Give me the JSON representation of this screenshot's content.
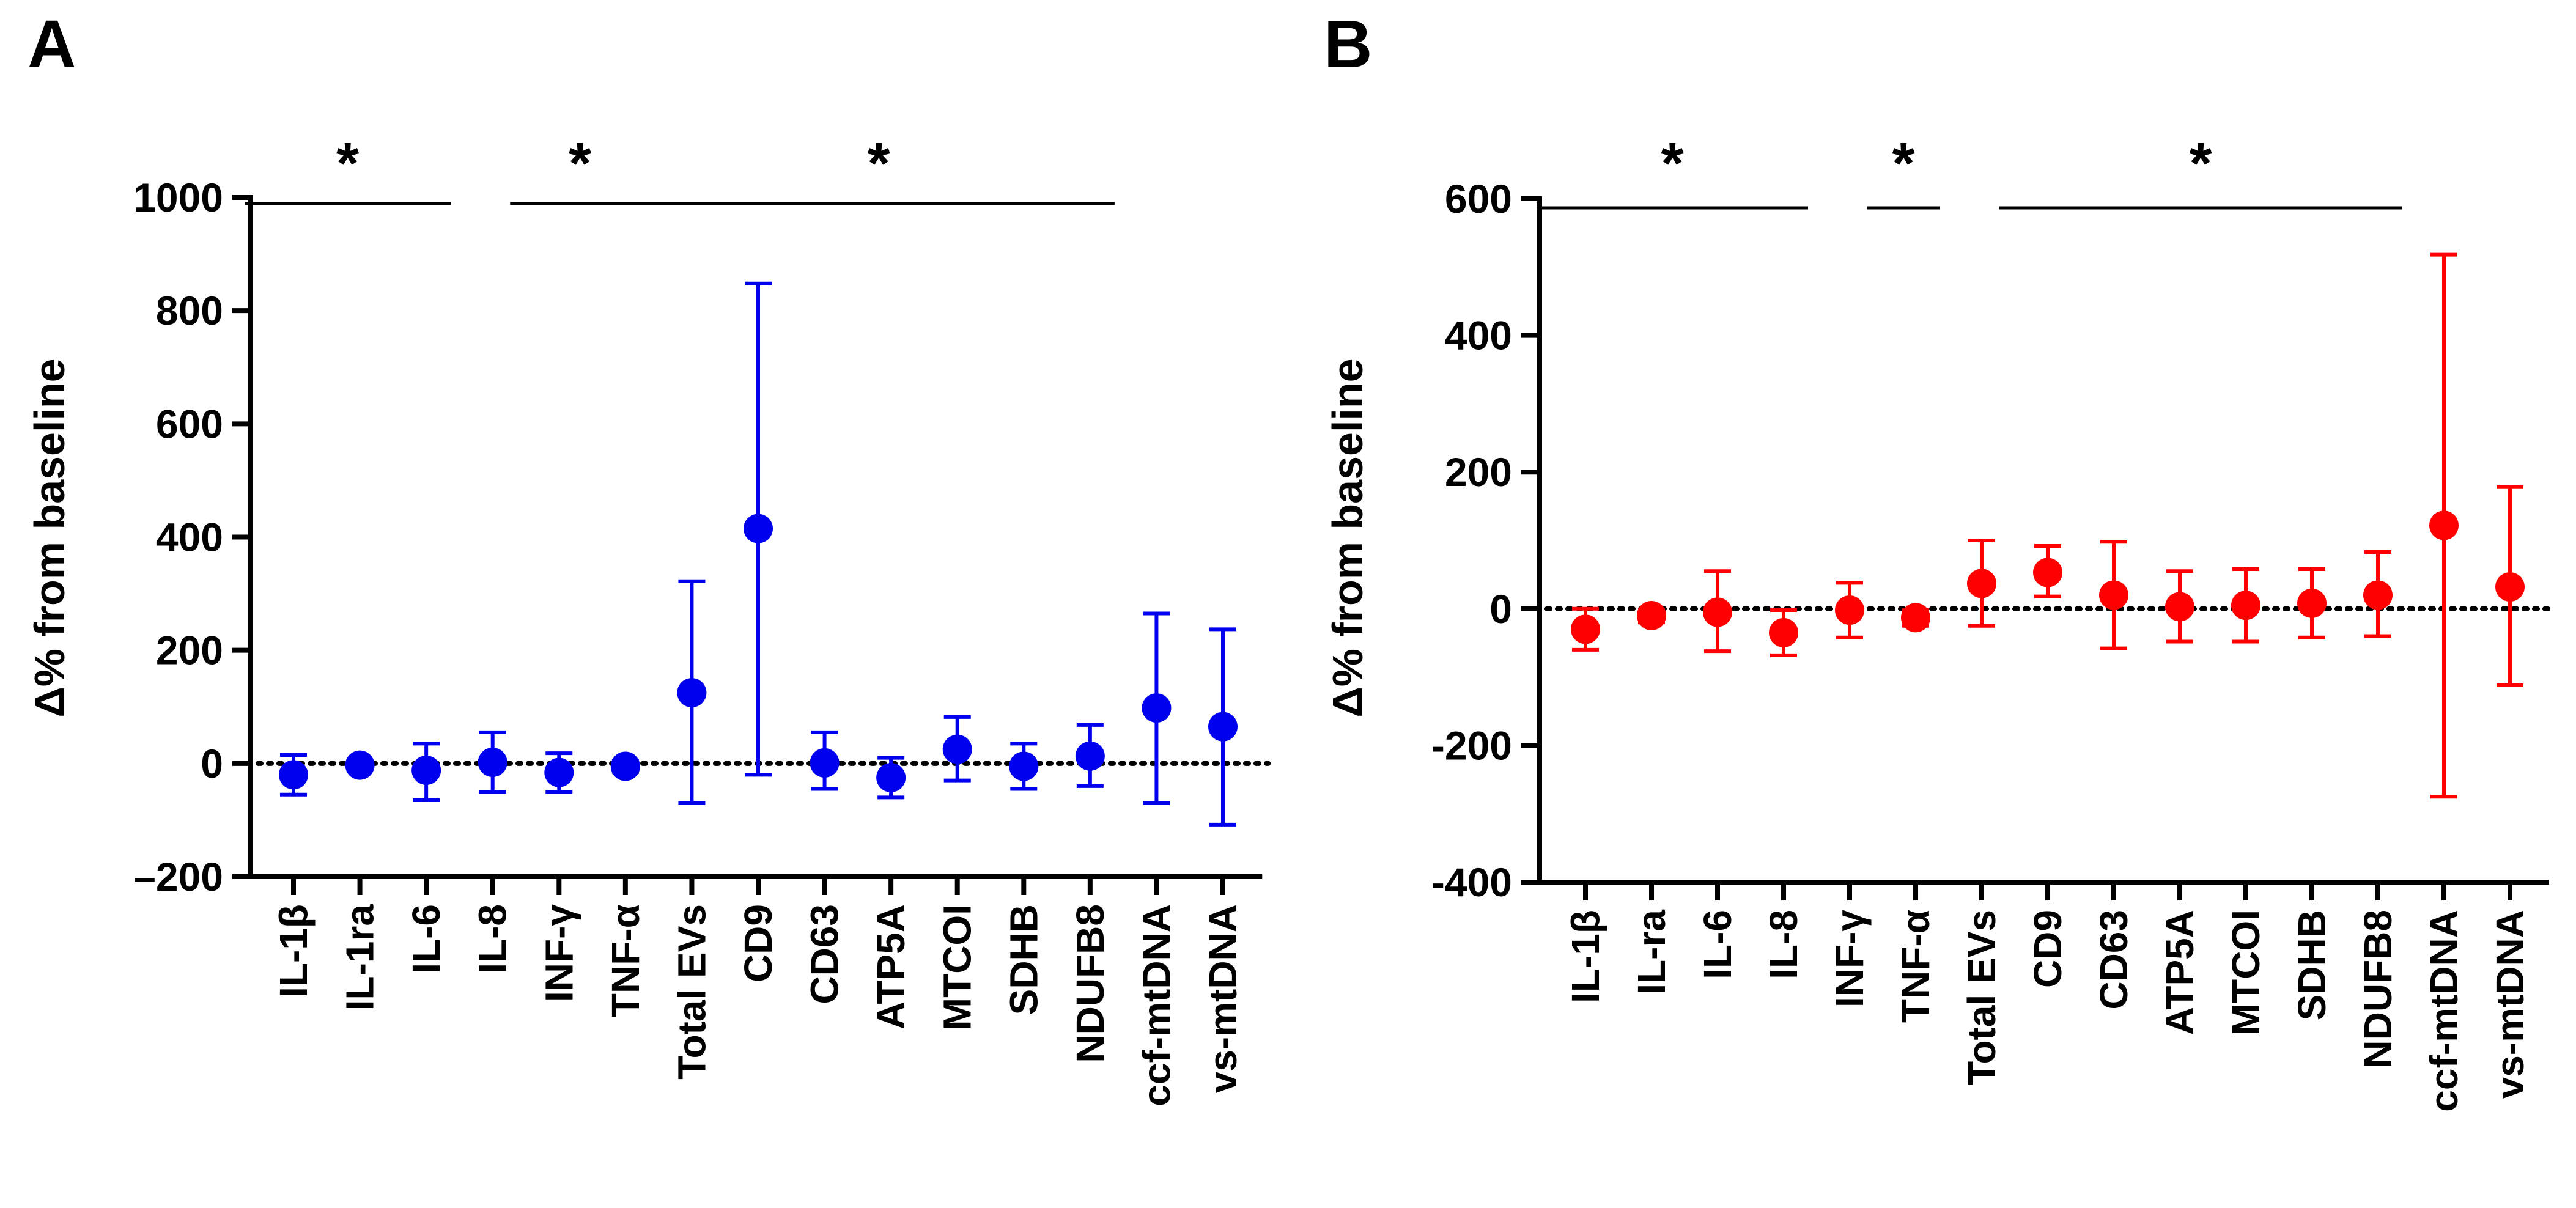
{
  "chart_data": [
    {
      "type": "scatter",
      "panel_label": "A",
      "ylabel": "Δ% from baseline",
      "xlabel": "",
      "ylim": [
        -200,
        1000
      ],
      "yticks": [
        -200,
        0,
        200,
        400,
        600,
        800,
        1000
      ],
      "ytick_labels": [
        "–200",
        "0",
        "200",
        "400",
        "600",
        "800",
        "1000"
      ],
      "reference_line": 0,
      "color": "#0000ee",
      "categories": [
        "IL-1β",
        "IL-1ra",
        "IL-6",
        "IL-8",
        "INF-γ",
        "TNF-α",
        "Total EVs",
        "CD9",
        "CD63",
        "ATP5A",
        "MTCOI",
        "SDHB",
        "NDUFB8",
        "ccf-mtDNA",
        "vs-mtDNA"
      ],
      "values": [
        -20,
        -3,
        -12,
        2,
        -16,
        -5,
        125,
        415,
        1,
        -25,
        25,
        -5,
        13,
        98,
        65
      ],
      "error_low": [
        -55,
        -10,
        -65,
        -50,
        -50,
        -15,
        -70,
        -20,
        -45,
        -60,
        -30,
        -45,
        -40,
        -70,
        -108
      ],
      "error_high": [
        15,
        5,
        35,
        55,
        18,
        5,
        322,
        848,
        55,
        10,
        82,
        35,
        68,
        265,
        237
      ],
      "significance": [
        {
          "from": 0,
          "to": 2,
          "label": "*"
        },
        {
          "from": 4,
          "to": 5,
          "label": "*"
        },
        {
          "from": 6,
          "to": 12,
          "label": "*"
        }
      ]
    },
    {
      "type": "scatter",
      "panel_label": "B",
      "ylabel": "Δ% from baseline",
      "xlabel": "",
      "ylim": [
        -400,
        600
      ],
      "yticks": [
        -400,
        -200,
        0,
        200,
        400,
        600
      ],
      "ytick_labels": [
        "-400",
        "-200",
        "0",
        "200",
        "400",
        "600"
      ],
      "reference_line": 0,
      "color": "#ff0000",
      "categories": [
        "IL-1β",
        "IL-ra",
        "IL-6",
        "IL-8",
        "INF-γ",
        "TNF-α",
        "Total EVs",
        "CD9",
        "CD63",
        "ATP5A",
        "MTCOI",
        "SDHB",
        "NDUFB8",
        "ccf-mtDNA",
        "vs-mtDNA"
      ],
      "values": [
        -30,
        -10,
        -5,
        -35,
        -2,
        -13,
        37,
        53,
        20,
        3,
        5,
        8,
        20,
        122,
        32
      ],
      "error_low": [
        -60,
        -20,
        -62,
        -68,
        -42,
        -25,
        -25,
        18,
        -58,
        -48,
        -48,
        -42,
        -40,
        -275,
        -112
      ],
      "error_high": [
        0,
        -2,
        55,
        -2,
        38,
        -2,
        100,
        92,
        98,
        55,
        58,
        58,
        83,
        518,
        178
      ],
      "significance": [
        {
          "from": 0,
          "to": 3,
          "label": "*"
        },
        {
          "from": 5,
          "to": 5,
          "label": "*"
        },
        {
          "from": 7,
          "to": 12,
          "label": "*"
        }
      ]
    }
  ]
}
